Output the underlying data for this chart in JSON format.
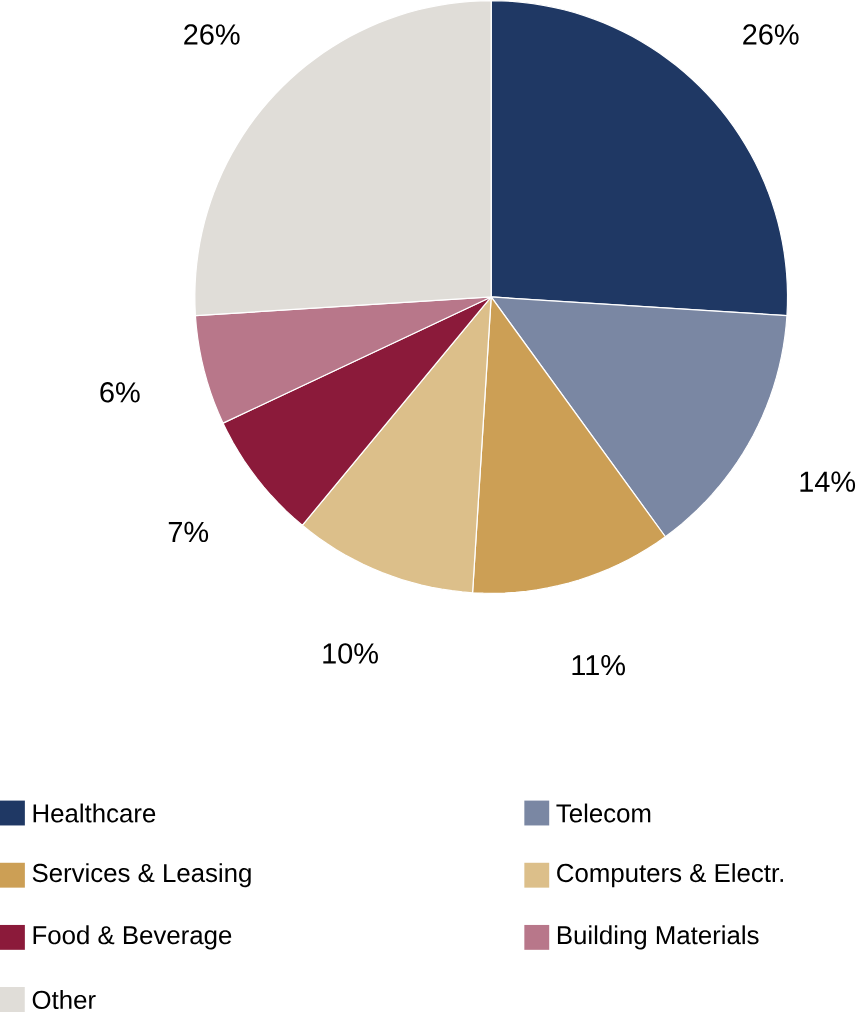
{
  "chart_data": {
    "type": "pie",
    "categories": [
      "Healthcare",
      "Telecom",
      "Services & Leasing",
      "Computers & Electr.",
      "Food & Beverage",
      "Building Materials",
      "Other"
    ],
    "values": [
      26,
      14,
      11,
      10,
      7,
      6,
      26
    ],
    "value_labels": [
      "26%",
      "14%",
      "11%",
      "10%",
      "7%",
      "6%",
      "26%"
    ],
    "colors": [
      "#1f3864",
      "#7a87a3",
      "#cc9f55",
      "#dcbf8a",
      "#8b1a3a",
      "#b8778a",
      "#e0ddd8"
    ],
    "legend": "bottom"
  }
}
